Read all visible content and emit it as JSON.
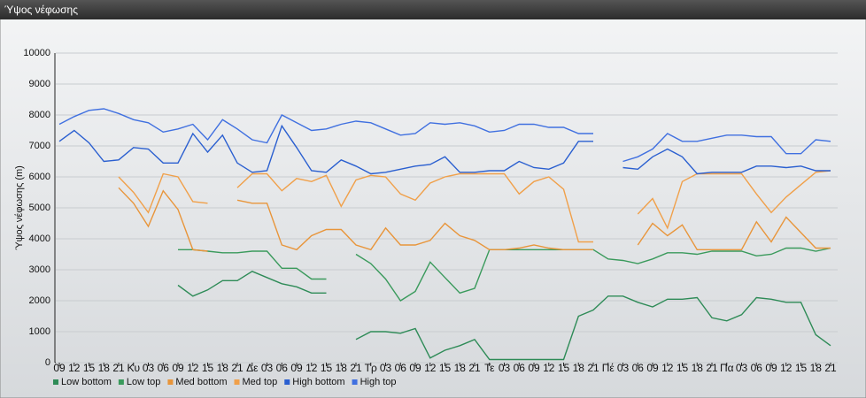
{
  "chart_data": {
    "type": "line",
    "title": "Ύψος νέφωσης",
    "ylabel": "Ύψος νέφωσης (m)",
    "categories": [
      "09",
      "12",
      "15",
      "18",
      "21",
      "Κυ",
      "03",
      "06",
      "09",
      "12",
      "15",
      "18",
      "21",
      "Δε",
      "03",
      "06",
      "09",
      "12",
      "15",
      "18",
      "21",
      "Τρ",
      "03",
      "06",
      "09",
      "12",
      "15",
      "18",
      "21",
      "Τε",
      "03",
      "06",
      "09",
      "12",
      "15",
      "18",
      "21",
      "Πέ",
      "03",
      "06",
      "09",
      "12",
      "15",
      "18",
      "21",
      "Πα",
      "03",
      "06",
      "09",
      "12",
      "15",
      "18",
      "21"
    ],
    "series": [
      {
        "name": "Low bottom",
        "color": "#2e8b57",
        "values": [
          null,
          null,
          null,
          null,
          null,
          null,
          null,
          null,
          2500,
          2150,
          2350,
          2650,
          2650,
          2950,
          2750,
          2550,
          2450,
          2250,
          2250,
          null,
          750,
          1000,
          1000,
          950,
          1100,
          150,
          400,
          550,
          750,
          100,
          100,
          100,
          100,
          100,
          100,
          1500,
          1700,
          2150,
          2150,
          1950,
          1800,
          2050,
          2050,
          2100,
          1450,
          1350,
          1550,
          2100,
          2050,
          1950,
          1950,
          900,
          550
        ]
      },
      {
        "name": "Low top",
        "color": "#3a9a5c",
        "values": [
          null,
          null,
          null,
          null,
          null,
          null,
          null,
          null,
          3650,
          3650,
          3600,
          3550,
          3550,
          3600,
          3600,
          3050,
          3050,
          2700,
          2700,
          null,
          3500,
          3200,
          2700,
          2000,
          2300,
          3250,
          2750,
          2250,
          2400,
          3650,
          3650,
          3650,
          3650,
          3650,
          3650,
          3650,
          3650,
          3350,
          3300,
          3200,
          3350,
          3550,
          3550,
          3500,
          3600,
          3600,
          3600,
          3450,
          3500,
          3700,
          3700,
          3600,
          3700
        ]
      },
      {
        "name": "Med bottom",
        "color": "#e8953a",
        "values": [
          null,
          null,
          null,
          null,
          5650,
          5150,
          4400,
          5550,
          4950,
          3650,
          3600,
          null,
          5250,
          5150,
          5150,
          3800,
          3650,
          4100,
          4300,
          4300,
          3800,
          3650,
          4350,
          3800,
          3800,
          3950,
          4500,
          4100,
          3950,
          3650,
          3650,
          3700,
          3800,
          3700,
          3650,
          3650,
          3650,
          null,
          null,
          3800,
          4500,
          4100,
          4450,
          3650,
          3650,
          3650,
          3650,
          4550,
          3900,
          4700,
          4200,
          3700,
          3700
        ]
      },
      {
        "name": "Med top",
        "color": "#f0a04a",
        "values": [
          null,
          null,
          null,
          null,
          6000,
          5500,
          4850,
          6100,
          6000,
          5200,
          5150,
          null,
          5650,
          6100,
          6100,
          5550,
          5950,
          5850,
          6050,
          5050,
          5900,
          6050,
          6000,
          5450,
          5250,
          5800,
          6000,
          6100,
          6100,
          6100,
          6100,
          5450,
          5850,
          6000,
          5600,
          3900,
          3900,
          null,
          null,
          4800,
          5300,
          4350,
          5850,
          6100,
          6100,
          6100,
          6100,
          5450,
          4850,
          5350,
          5750,
          6150,
          6200
        ]
      },
      {
        "name": "High bottom",
        "color": "#2a5fd0",
        "values": [
          7150,
          7500,
          7100,
          6500,
          6550,
          6950,
          6900,
          6450,
          6450,
          7400,
          6800,
          7350,
          6450,
          6150,
          6200,
          7650,
          6950,
          6200,
          6150,
          6550,
          6350,
          6100,
          6150,
          6250,
          6350,
          6400,
          6650,
          6150,
          6150,
          6200,
          6200,
          6500,
          6300,
          6250,
          6450,
          7150,
          7150,
          null,
          6300,
          6250,
          6650,
          6900,
          6650,
          6100,
          6150,
          6150,
          6150,
          6350,
          6350,
          6300,
          6350,
          6200,
          6200
        ]
      },
      {
        "name": "High top",
        "color": "#4070e0",
        "values": [
          7700,
          7950,
          8150,
          8200,
          8050,
          7850,
          7750,
          7450,
          7550,
          7700,
          7200,
          7850,
          7550,
          7200,
          7100,
          8000,
          7750,
          7500,
          7550,
          7700,
          7800,
          7750,
          7550,
          7350,
          7400,
          7750,
          7700,
          7750,
          7650,
          7450,
          7500,
          7700,
          7700,
          7600,
          7600,
          7400,
          7400,
          null,
          6500,
          6650,
          6900,
          7400,
          7150,
          7150,
          7250,
          7350,
          7350,
          7300,
          7300,
          6750,
          6750,
          7200,
          7150
        ]
      }
    ],
    "ylim": [
      0,
      10000
    ],
    "yticks": [
      0,
      1000,
      2000,
      3000,
      4000,
      5000,
      6000,
      7000,
      8000,
      9000,
      10000
    ],
    "grid": true
  }
}
